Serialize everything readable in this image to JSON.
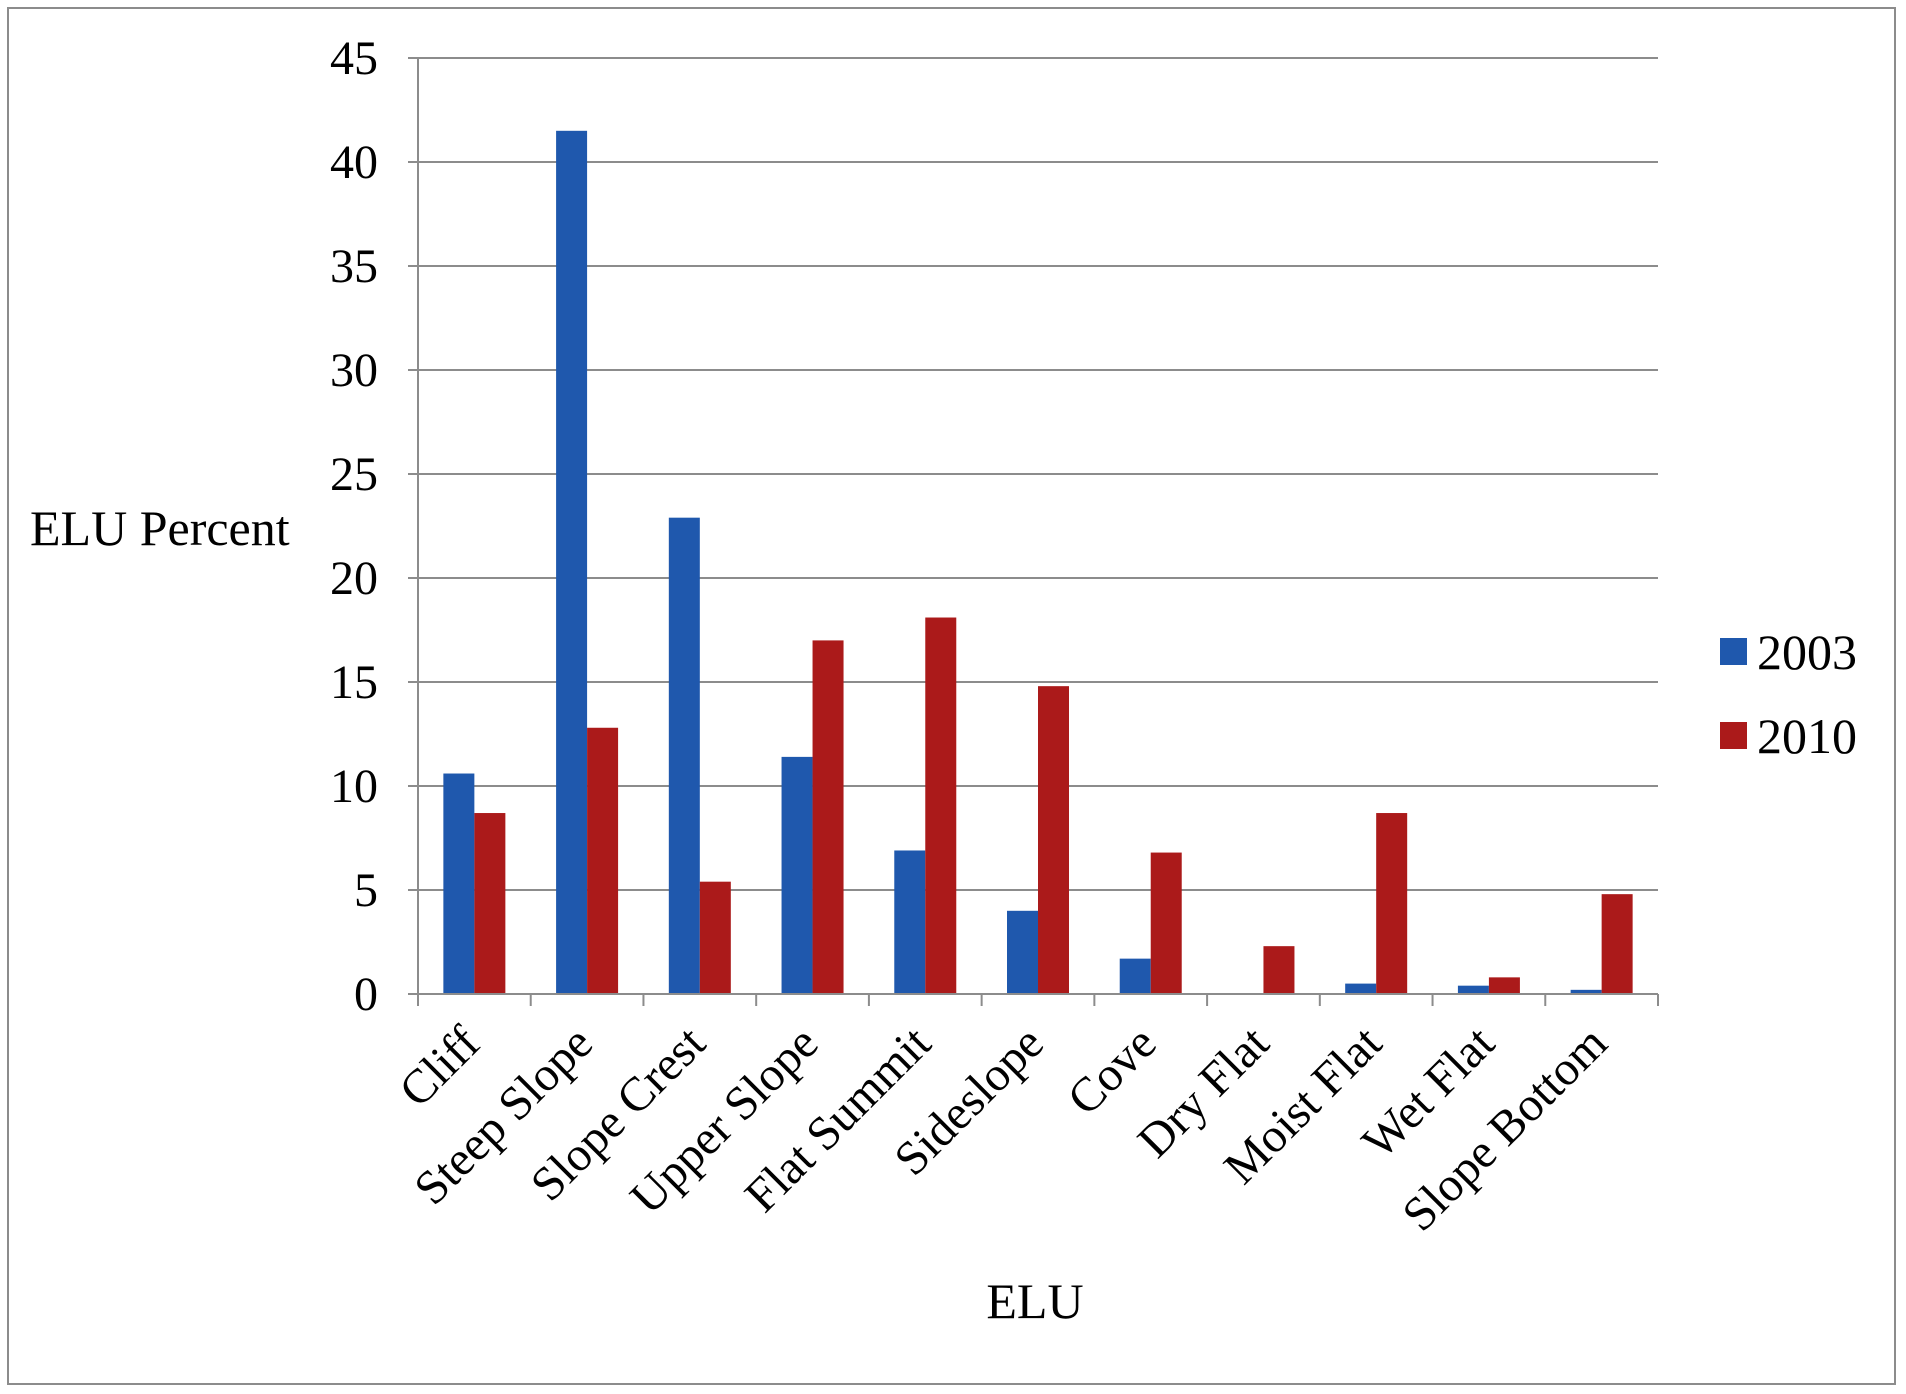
{
  "chart_data": {
    "type": "bar",
    "title": "",
    "xlabel": "ELU",
    "ylabel": "ELU Percent",
    "ylim": [
      0,
      45
    ],
    "yticks": [
      "0",
      "5",
      "10",
      "15",
      "20",
      "25",
      "30",
      "35",
      "40",
      "45"
    ],
    "grid": true,
    "legend_position": "right",
    "categories": [
      "Cliff",
      "Steep Slope",
      "Slope Crest",
      "Upper Slope",
      "Flat Summit",
      "Sideslope",
      "Cove",
      "Dry Flat",
      "Moist Flat",
      "Wet Flat",
      "Slope Bottom"
    ],
    "series": [
      {
        "name": "2003",
        "color": "#1f58ad",
        "values": [
          10.6,
          41.5,
          22.9,
          11.4,
          6.9,
          4.0,
          1.7,
          0.0,
          0.5,
          0.4,
          0.2
        ]
      },
      {
        "name": "2010",
        "color": "#ab1a1a",
        "values": [
          8.7,
          12.8,
          5.4,
          17.0,
          18.1,
          14.8,
          6.8,
          2.3,
          8.7,
          0.8,
          4.8
        ]
      }
    ]
  }
}
